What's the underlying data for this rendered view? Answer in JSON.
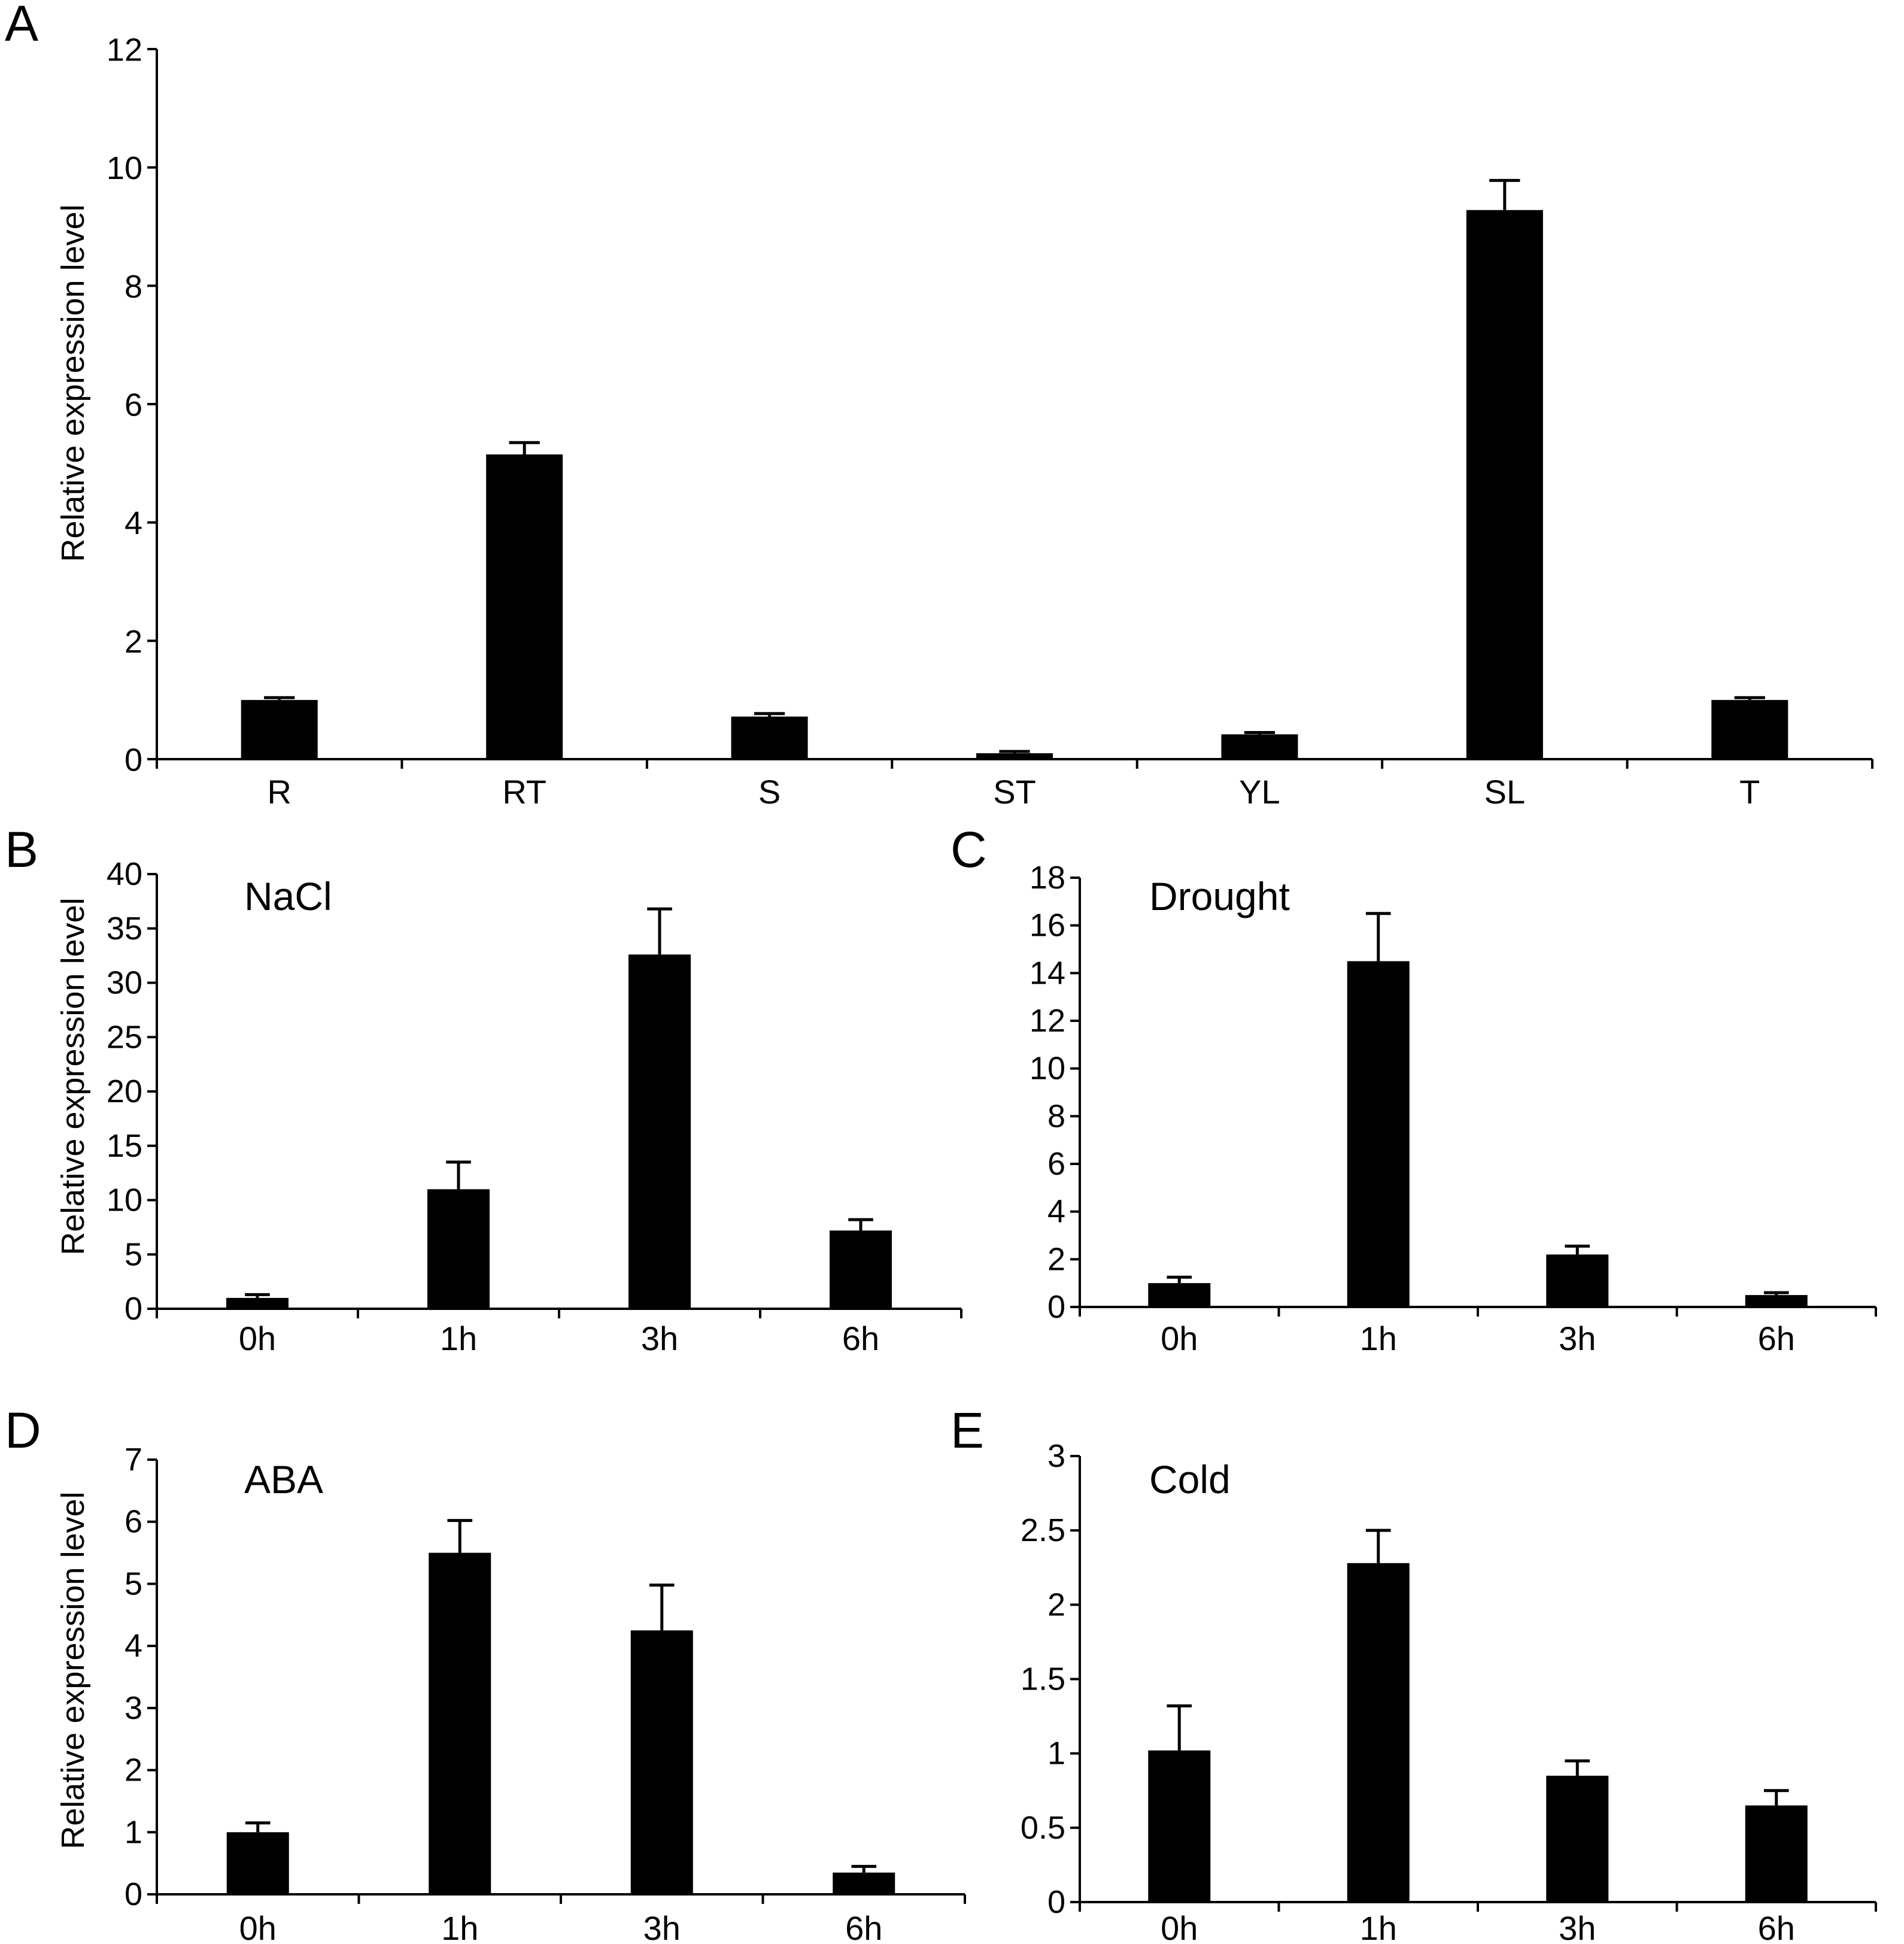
{
  "chart_data": [
    {
      "id": "A",
      "panel_label": "A",
      "type": "bar",
      "title": "",
      "ylabel": "Relative expression level",
      "xlabel": "",
      "ylim": [
        0,
        12
      ],
      "yticks": [
        "0",
        "2",
        "4",
        "6",
        "8",
        "10",
        "12"
      ],
      "ytick_values": [
        0,
        2,
        4,
        6,
        8,
        10,
        12
      ],
      "categories": [
        "R",
        "RT",
        "S",
        "ST",
        "YL",
        "SL",
        "T"
      ],
      "values": [
        1.0,
        5.15,
        0.72,
        0.1,
        0.42,
        9.28,
        1.0
      ],
      "errors": [
        0.04,
        0.2,
        0.05,
        0.03,
        0.03,
        0.5,
        0.04
      ]
    },
    {
      "id": "B",
      "panel_label": "B",
      "type": "bar",
      "title": "NaCl",
      "ylabel": "Relative expression level",
      "xlabel": "",
      "ylim": [
        0,
        40
      ],
      "yticks": [
        "0",
        "5",
        "10",
        "15",
        "20",
        "25",
        "30",
        "35",
        "40"
      ],
      "ytick_values": [
        0,
        5,
        10,
        15,
        20,
        25,
        30,
        35,
        40
      ],
      "categories": [
        "0h",
        "1h",
        "3h",
        "6h"
      ],
      "values": [
        1.0,
        11.0,
        32.6,
        7.2
      ],
      "errors": [
        0.3,
        2.5,
        4.2,
        1.0
      ]
    },
    {
      "id": "C",
      "panel_label": "C",
      "type": "bar",
      "title": "Drought",
      "ylabel": "",
      "xlabel": "",
      "ylim": [
        0,
        18
      ],
      "yticks": [
        "0",
        "2",
        "4",
        "6",
        "8",
        "10",
        "12",
        "14",
        "16",
        "18"
      ],
      "ytick_values": [
        0,
        2,
        4,
        6,
        8,
        10,
        12,
        14,
        16,
        18
      ],
      "categories": [
        "0h",
        "1h",
        "3h",
        "6h"
      ],
      "values": [
        1.0,
        14.5,
        2.2,
        0.5
      ],
      "errors": [
        0.25,
        2.0,
        0.35,
        0.1
      ]
    },
    {
      "id": "D",
      "panel_label": "D",
      "type": "bar",
      "title": "ABA",
      "ylabel": "Relative expression level",
      "xlabel": "",
      "ylim": [
        0,
        7
      ],
      "yticks": [
        "0",
        "1",
        "2",
        "3",
        "4",
        "5",
        "6",
        "7"
      ],
      "ytick_values": [
        0,
        1,
        2,
        3,
        4,
        5,
        6,
        7
      ],
      "categories": [
        "0h",
        "1h",
        "3h",
        "6h"
      ],
      "values": [
        1.0,
        5.5,
        4.25,
        0.35
      ],
      "errors": [
        0.15,
        0.52,
        0.73,
        0.1
      ]
    },
    {
      "id": "E",
      "panel_label": "E",
      "type": "bar",
      "title": "Cold",
      "ylabel": "",
      "xlabel": "",
      "ylim": [
        0,
        3
      ],
      "yticks": [
        "0",
        "0.5",
        "1",
        "1.5",
        "2",
        "2.5",
        "3"
      ],
      "ytick_values": [
        0,
        0.5,
        1,
        1.5,
        2,
        2.5,
        3
      ],
      "categories": [
        "0h",
        "1h",
        "3h",
        "6h"
      ],
      "values": [
        1.02,
        2.28,
        0.85,
        0.65
      ],
      "errors": [
        0.3,
        0.22,
        0.1,
        0.1
      ]
    }
  ]
}
